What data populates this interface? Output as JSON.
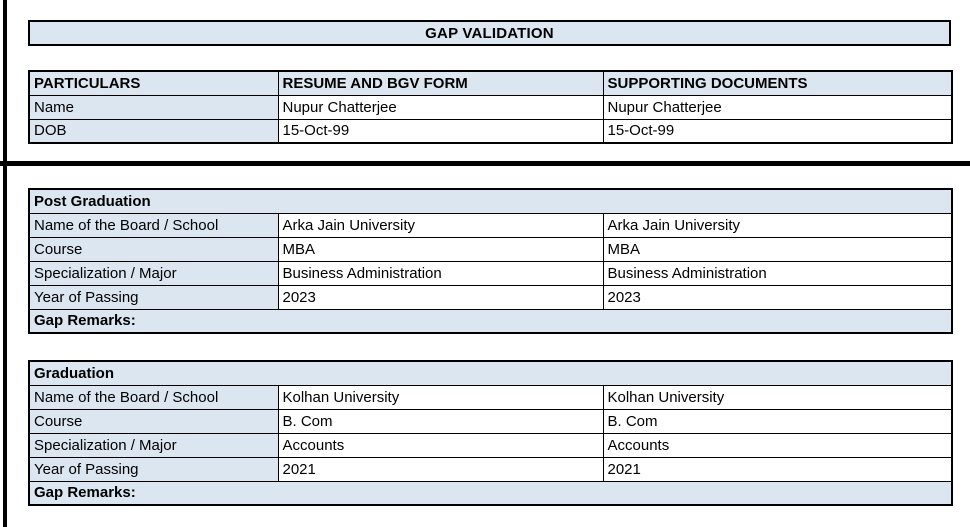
{
  "page": {
    "title": "GAP VALIDATION"
  },
  "colors": {
    "header_fill": "#dce6f1",
    "border": "#000000",
    "text": "#000000",
    "background": "#ffffff"
  },
  "identity_table": {
    "columns": [
      "PARTICULARS",
      "RESUME AND BGV FORM",
      "SUPPORTING DOCUMENTS"
    ],
    "rows": [
      {
        "label": "Name",
        "resume": "Nupur Chatterjee",
        "supporting": "Nupur Chatterjee"
      },
      {
        "label": "DOB",
        "resume": "15-Oct-99",
        "supporting": "15-Oct-99"
      }
    ]
  },
  "sections": [
    {
      "title": "Post Graduation",
      "rows": [
        {
          "label": "Name of the Board / School",
          "resume": "Arka Jain University",
          "supporting": "Arka Jain University"
        },
        {
          "label": "Course",
          "resume": "MBA",
          "supporting": "MBA"
        },
        {
          "label": "Specialization / Major",
          "resume": "Business Administration",
          "supporting": "Business Administration"
        },
        {
          "label": "Year of Passing",
          "resume": "2023",
          "supporting": "2023"
        }
      ],
      "gap_remarks_label": "Gap Remarks:",
      "gap_remarks_value": ""
    },
    {
      "title": "Graduation",
      "rows": [
        {
          "label": "Name of the Board / School",
          "resume": "Kolhan University",
          "supporting": "Kolhan University"
        },
        {
          "label": "Course",
          "resume": "B. Com",
          "supporting": "B. Com"
        },
        {
          "label": "Specialization / Major",
          "resume": "Accounts",
          "supporting": "Accounts"
        },
        {
          "label": "Year of Passing",
          "resume": "2021",
          "supporting": "2021"
        }
      ],
      "gap_remarks_label": "Gap Remarks:",
      "gap_remarks_value": ""
    }
  ]
}
